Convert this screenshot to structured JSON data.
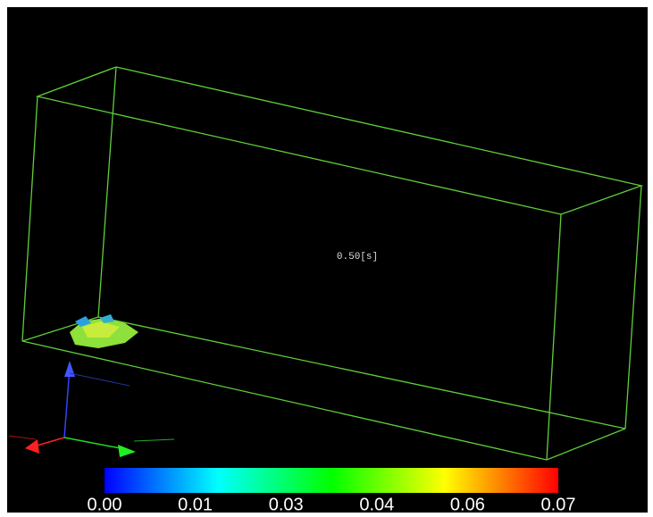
{
  "time_label": "0.50[s]",
  "colorbar": {
    "ticks": [
      "0.00",
      "0.01",
      "0.03",
      "0.04",
      "0.06",
      "0.07"
    ]
  }
}
